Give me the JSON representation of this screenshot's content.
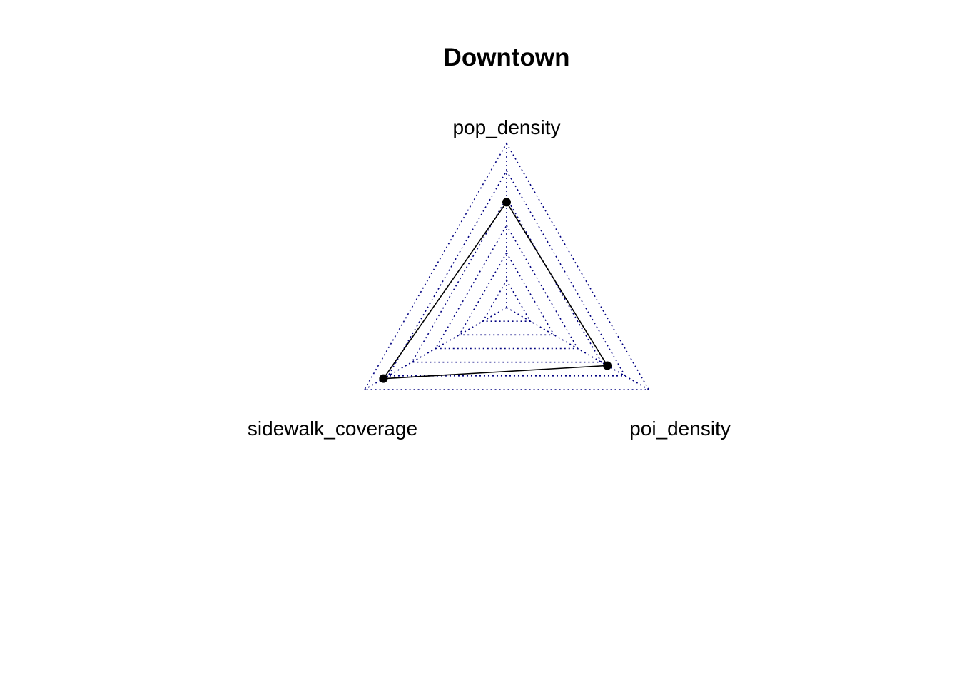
{
  "chart_data": {
    "type": "radar",
    "title": "Downtown",
    "axes": [
      "pop_density",
      "poi_density",
      "sidewalk_coverage"
    ],
    "axis_range": [
      0,
      1
    ],
    "grid_levels": 5,
    "series": [
      {
        "name": "Downtown",
        "values": [
          0.57,
          0.65,
          0.84
        ]
      }
    ],
    "grid_color": "#000080",
    "series_color": "#000000"
  }
}
